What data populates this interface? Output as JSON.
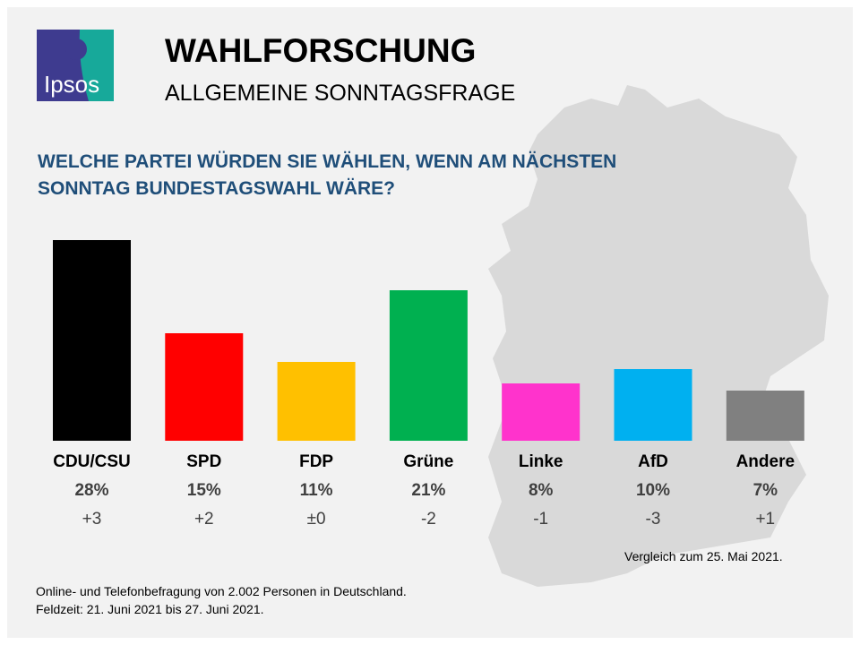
{
  "header": {
    "title": "WAHLFORSCHUNG",
    "subtitle": "ALLGEMEINE SONNTAGSFRAGE",
    "logo_text": "Ipsos"
  },
  "question": {
    "line1": "WELCHE PARTEI WÜRDEN SIE WÄHLEN, WENN AM NÄCHSTEN",
    "line2": "SONNTAG BUNDESTAGSWAHL WÄRE?"
  },
  "chart_data": {
    "type": "bar",
    "categories": [
      "CDU/CSU",
      "SPD",
      "FDP",
      "Grüne",
      "Linke",
      "AfD",
      "Andere"
    ],
    "values": [
      28,
      15,
      11,
      21,
      8,
      10,
      7
    ],
    "value_labels": [
      "28%",
      "15%",
      "11%",
      "21%",
      "8%",
      "10%",
      "7%"
    ],
    "changes": [
      "+3",
      "+2",
      "±0",
      "-2",
      "-1",
      "-3",
      "+1"
    ],
    "colors": [
      "#000000",
      "#ff0000",
      "#ffc000",
      "#00b050",
      "#ff33cc",
      "#00b0f0",
      "#808080"
    ],
    "ylim": [
      0,
      28
    ],
    "grid": false
  },
  "comparison_note": "Vergleich  zum 25. Mai 2021.",
  "footer": {
    "line1": "Online- und Telefonbefragung  von 2.002 Personen in Deutschland.",
    "line2": "Feldzeit: 21. Juni 2021 bis 27. Juni 2021."
  }
}
